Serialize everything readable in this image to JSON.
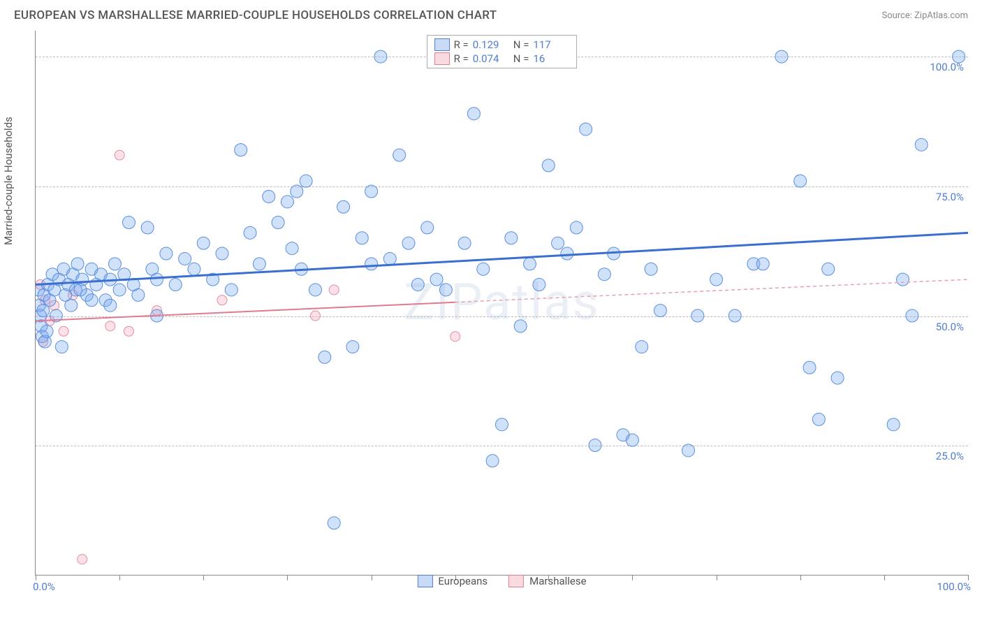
{
  "title": "EUROPEAN VS MARSHALLESE MARRIED-COUPLE HOUSEHOLDS CORRELATION CHART",
  "source": "Source: ZipAtlas.com",
  "y_axis_label": "Married-couple Households",
  "watermark": "ZIPatlas",
  "chart": {
    "type": "scatter",
    "xlim": [
      0,
      100
    ],
    "ylim": [
      0,
      105
    ],
    "x_tick_labels": [
      {
        "pos": 0,
        "label": "0.0%"
      },
      {
        "pos": 100,
        "label": "100.0%"
      }
    ],
    "y_tick_labels": [
      {
        "pos": 25,
        "label": "25.0%"
      },
      {
        "pos": 50,
        "label": "50.0%"
      },
      {
        "pos": 75,
        "label": "75.0%"
      },
      {
        "pos": 100,
        "label": "100.0%"
      }
    ],
    "x_ticks_minor": [
      0,
      9,
      18,
      27,
      36,
      45,
      55,
      64,
      73,
      82,
      91,
      100
    ],
    "gridlines_y": [
      25,
      50,
      75,
      100
    ],
    "background_color": "#ffffff",
    "grid_color": "#bbbbbb",
    "axis_color": "#888888",
    "marker_radius": 9,
    "marker_radius_small": 7
  },
  "series": {
    "europeans": {
      "label": "Europeans",
      "color_fill": "rgba(120,170,240,0.35)",
      "color_stroke": "#5a8de0",
      "R": "0.129",
      "N": "117",
      "trend": {
        "y_at_x0": 56,
        "y_at_x100": 66,
        "color": "#3a6fd0",
        "width": 3
      },
      "points": [
        [
          0.3,
          55
        ],
        [
          0.4,
          52
        ],
        [
          0.5,
          50
        ],
        [
          0.6,
          48
        ],
        [
          0.7,
          46
        ],
        [
          0.8,
          51
        ],
        [
          0.9,
          54
        ],
        [
          1,
          45
        ],
        [
          1.2,
          47
        ],
        [
          1.3,
          56
        ],
        [
          1.5,
          53
        ],
        [
          1.8,
          58
        ],
        [
          2,
          55
        ],
        [
          2.2,
          50
        ],
        [
          2.5,
          57
        ],
        [
          2.8,
          44
        ],
        [
          3,
          59
        ],
        [
          3.2,
          54
        ],
        [
          3.5,
          56
        ],
        [
          3.8,
          52
        ],
        [
          4,
          58
        ],
        [
          4.3,
          55
        ],
        [
          4.5,
          60
        ],
        [
          5,
          57
        ],
        [
          5.5,
          54
        ],
        [
          6,
          59
        ],
        [
          6.5,
          56
        ],
        [
          7,
          58
        ],
        [
          7.5,
          53
        ],
        [
          8,
          57
        ],
        [
          8.5,
          60
        ],
        [
          9,
          55
        ],
        [
          9.5,
          58
        ],
        [
          10,
          68
        ],
        [
          10.5,
          56
        ],
        [
          11,
          54
        ],
        [
          12,
          67
        ],
        [
          12.5,
          59
        ],
        [
          13,
          57
        ],
        [
          14,
          62
        ],
        [
          15,
          56
        ],
        [
          16,
          61
        ],
        [
          17,
          59
        ],
        [
          18,
          64
        ],
        [
          19,
          57
        ],
        [
          20,
          62
        ],
        [
          21,
          55
        ],
        [
          22,
          82
        ],
        [
          23,
          66
        ],
        [
          24,
          60
        ],
        [
          25,
          73
        ],
        [
          26,
          68
        ],
        [
          27,
          72
        ],
        [
          27.5,
          63
        ],
        [
          28,
          74
        ],
        [
          28.5,
          59
        ],
        [
          29,
          76
        ],
        [
          30,
          55
        ],
        [
          31,
          42
        ],
        [
          32,
          10
        ],
        [
          33,
          71
        ],
        [
          34,
          44
        ],
        [
          35,
          65
        ],
        [
          36,
          74
        ],
        [
          37,
          100
        ],
        [
          38,
          61
        ],
        [
          39,
          81
        ],
        [
          40,
          64
        ],
        [
          41,
          56
        ],
        [
          42,
          67
        ],
        [
          43,
          57
        ],
        [
          44,
          55
        ],
        [
          45,
          100
        ],
        [
          46,
          64
        ],
        [
          47,
          89
        ],
        [
          48,
          59
        ],
        [
          49,
          22
        ],
        [
          50,
          29
        ],
        [
          51,
          65
        ],
        [
          52,
          48
        ],
        [
          53,
          60
        ],
        [
          54,
          56
        ],
        [
          55,
          79
        ],
        [
          56,
          64
        ],
        [
          57,
          62
        ],
        [
          58,
          67
        ],
        [
          59,
          86
        ],
        [
          60,
          25
        ],
        [
          61,
          58
        ],
        [
          62,
          62
        ],
        [
          63,
          27
        ],
        [
          64,
          26
        ],
        [
          65,
          44
        ],
        [
          66,
          59
        ],
        [
          67,
          51
        ],
        [
          70,
          24
        ],
        [
          71,
          50
        ],
        [
          73,
          57
        ],
        [
          75,
          50
        ],
        [
          77,
          60
        ],
        [
          78,
          60
        ],
        [
          80,
          100
        ],
        [
          82,
          76
        ],
        [
          83,
          40
        ],
        [
          84,
          30
        ],
        [
          85,
          59
        ],
        [
          86,
          38
        ],
        [
          92,
          29
        ],
        [
          93,
          57
        ],
        [
          94,
          50
        ],
        [
          95,
          83
        ],
        [
          99,
          100
        ],
        [
          36,
          60
        ],
        [
          13,
          50
        ],
        [
          8,
          52
        ],
        [
          6,
          53
        ],
        [
          4.8,
          55
        ]
      ]
    },
    "marshallese": {
      "label": "Marshallese",
      "color_fill": "rgba(245,170,190,0.35)",
      "color_stroke": "#e090a0",
      "R": "0.074",
      "N": "16",
      "trend": {
        "y_at_x0": 49,
        "y_at_x100": 57,
        "solid_until_x": 45,
        "color": "#e07a90",
        "width": 2
      },
      "points": [
        [
          0.5,
          56
        ],
        [
          1,
          53
        ],
        [
          1.5,
          49
        ],
        [
          2,
          52
        ],
        [
          3,
          47
        ],
        [
          4,
          54
        ],
        [
          5,
          3
        ],
        [
          8,
          48
        ],
        [
          9,
          81
        ],
        [
          10,
          47
        ],
        [
          13,
          51
        ],
        [
          20,
          53
        ],
        [
          30,
          50
        ],
        [
          32,
          55
        ],
        [
          45,
          46
        ],
        [
          0.8,
          45
        ]
      ]
    }
  },
  "legend_top": {
    "rows": [
      {
        "swatch": "blue",
        "R_label": "R =",
        "R": "0.129",
        "N_label": "N =",
        "N": "117"
      },
      {
        "swatch": "pink",
        "R_label": "R =",
        "R": "0.074",
        "N_label": "N =",
        "16": "16",
        "N_val": "16"
      }
    ]
  },
  "legend_bottom": [
    {
      "swatch": "blue",
      "label": "Europeans"
    },
    {
      "swatch": "pink",
      "label": "Marshallese"
    }
  ]
}
